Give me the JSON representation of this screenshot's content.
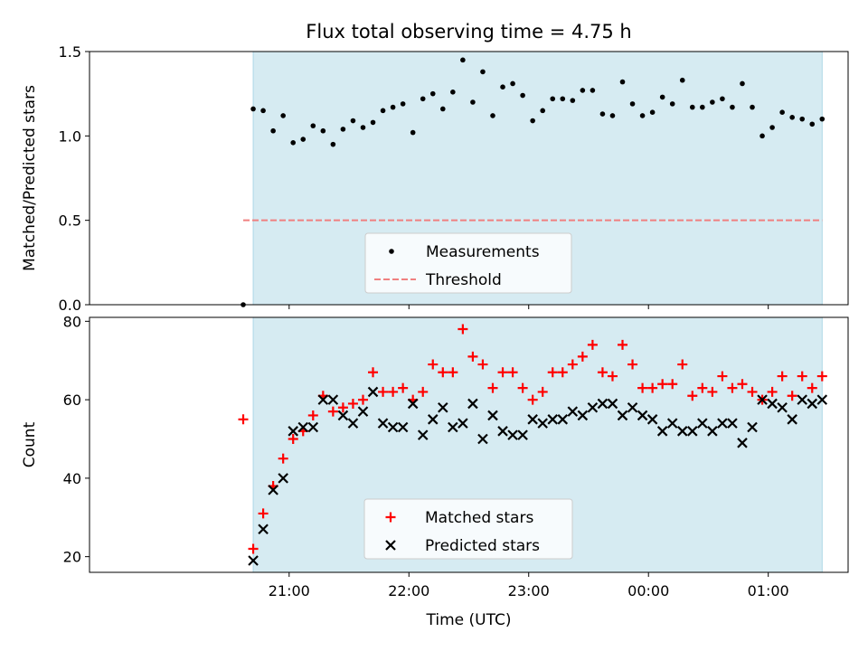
{
  "chart_data": {
    "title": "Flux total observing time = 4.75 h",
    "xlabel": "Time (UTC)",
    "x_ticks": [
      "21:00",
      "22:00",
      "23:00",
      "00:00",
      "01:00"
    ],
    "observing_window": {
      "start": "20:42",
      "end": "01:27"
    },
    "colors": {
      "band": "#add8e6",
      "threshold": "#f08080",
      "measurements": "#000000",
      "matched": "#ff0000",
      "predicted": "#000000"
    },
    "panels": [
      {
        "type": "scatter",
        "ylabel": "Matched/Predicted stars",
        "ylim": [
          0,
          1.5
        ],
        "yticks": [
          "0.0",
          "0.5",
          "1.0",
          "1.5"
        ],
        "threshold": 0.5,
        "legend": {
          "placement": "lower center",
          "entries": [
            "Measurements",
            "Threshold"
          ]
        },
        "series": [
          {
            "name": "Measurements",
            "marker": "dot",
            "x": [
              "20:37",
              "20:42",
              "20:47",
              "20:52",
              "20:57",
              "21:02",
              "21:07",
              "21:12",
              "21:17",
              "21:22",
              "21:27",
              "21:32",
              "21:37",
              "21:42",
              "21:47",
              "21:52",
              "21:57",
              "22:02",
              "22:07",
              "22:12",
              "22:17",
              "22:22",
              "22:27",
              "22:32",
              "22:37",
              "22:42",
              "22:47",
              "22:52",
              "22:57",
              "23:02",
              "23:07",
              "23:12",
              "23:17",
              "23:22",
              "23:27",
              "23:32",
              "23:37",
              "23:42",
              "23:47",
              "23:52",
              "23:57",
              "00:02",
              "00:07",
              "00:12",
              "00:17",
              "00:22",
              "00:27",
              "00:32",
              "00:37",
              "00:42",
              "00:47",
              "00:52",
              "00:57",
              "01:02",
              "01:07",
              "01:12",
              "01:17",
              "01:22",
              "01:27"
            ],
            "y": [
              0.0,
              1.16,
              1.15,
              1.03,
              1.12,
              0.96,
              0.98,
              1.06,
              1.03,
              0.95,
              1.04,
              1.09,
              1.05,
              1.08,
              1.15,
              1.17,
              1.19,
              1.02,
              1.22,
              1.25,
              1.16,
              1.26,
              1.45,
              1.2,
              1.38,
              1.12,
              1.29,
              1.31,
              1.24,
              1.09,
              1.15,
              1.22,
              1.22,
              1.21,
              1.27,
              1.27,
              1.13,
              1.12,
              1.32,
              1.19,
              1.12,
              1.14,
              1.23,
              1.19,
              1.33,
              1.17,
              1.17,
              1.2,
              1.22,
              1.17,
              1.31,
              1.17,
              1.0,
              1.05,
              1.14,
              1.11,
              1.1,
              1.07,
              1.1
            ]
          }
        ]
      },
      {
        "type": "scatter",
        "ylabel": "Count",
        "ylim": [
          16,
          81
        ],
        "yticks": [
          "20",
          "40",
          "60",
          "80"
        ],
        "legend": {
          "placement": "lower center",
          "entries": [
            "Matched stars",
            "Predicted stars"
          ]
        },
        "series": [
          {
            "name": "Matched stars",
            "marker": "plus",
            "x": [
              "20:37",
              "20:42",
              "20:47",
              "20:52",
              "20:57",
              "21:02",
              "21:07",
              "21:12",
              "21:17",
              "21:22",
              "21:27",
              "21:32",
              "21:37",
              "21:42",
              "21:47",
              "21:52",
              "21:57",
              "22:02",
              "22:07",
              "22:12",
              "22:17",
              "22:22",
              "22:27",
              "22:32",
              "22:37",
              "22:42",
              "22:47",
              "22:52",
              "22:57",
              "23:02",
              "23:07",
              "23:12",
              "23:17",
              "23:22",
              "23:27",
              "23:32",
              "23:37",
              "23:42",
              "23:47",
              "23:52",
              "23:57",
              "00:02",
              "00:07",
              "00:12",
              "00:17",
              "00:22",
              "00:27",
              "00:32",
              "00:37",
              "00:42",
              "00:47",
              "00:52",
              "00:57",
              "01:02",
              "01:07",
              "01:12",
              "01:17",
              "01:22",
              "01:27"
            ],
            "y": [
              55,
              22,
              31,
              38,
              45,
              50,
              52,
              56,
              61,
              57,
              58,
              59,
              60,
              67,
              62,
              62,
              63,
              60,
              62,
              69,
              67,
              67,
              78,
              71,
              69,
              63,
              67,
              67,
              63,
              60,
              62,
              67,
              67,
              69,
              71,
              74,
              67,
              66,
              74,
              69,
              63,
              63,
              64,
              64,
              69,
              61,
              63,
              62,
              66,
              63,
              64,
              62,
              60,
              62,
              66,
              61,
              66,
              63,
              66
            ]
          },
          {
            "name": "Predicted stars",
            "marker": "x",
            "x": [
              "20:42",
              "20:47",
              "20:52",
              "20:57",
              "21:02",
              "21:07",
              "21:12",
              "21:17",
              "21:22",
              "21:27",
              "21:32",
              "21:37",
              "21:42",
              "21:47",
              "21:52",
              "21:57",
              "22:02",
              "22:07",
              "22:12",
              "22:17",
              "22:22",
              "22:27",
              "22:32",
              "22:37",
              "22:42",
              "22:47",
              "22:52",
              "22:57",
              "23:02",
              "23:07",
              "23:12",
              "23:17",
              "23:22",
              "23:27",
              "23:32",
              "23:37",
              "23:42",
              "23:47",
              "23:52",
              "23:57",
              "00:02",
              "00:07",
              "00:12",
              "00:17",
              "00:22",
              "00:27",
              "00:32",
              "00:37",
              "00:42",
              "00:47",
              "00:52",
              "00:57",
              "01:02",
              "01:07",
              "01:12",
              "01:17",
              "01:22",
              "01:27"
            ],
            "y": [
              19,
              27,
              37,
              40,
              52,
              53,
              53,
              60,
              60,
              56,
              54,
              57,
              62,
              54,
              53,
              53,
              59,
              51,
              55,
              58,
              53,
              54,
              59,
              50,
              56,
              52,
              51,
              51,
              55,
              54,
              55,
              55,
              57,
              56,
              58,
              59,
              59,
              56,
              58,
              56,
              55,
              52,
              54,
              52,
              52,
              54,
              52,
              54,
              54,
              49,
              53,
              60,
              59,
              58,
              55,
              60,
              59,
              60
            ]
          }
        ]
      }
    ]
  }
}
